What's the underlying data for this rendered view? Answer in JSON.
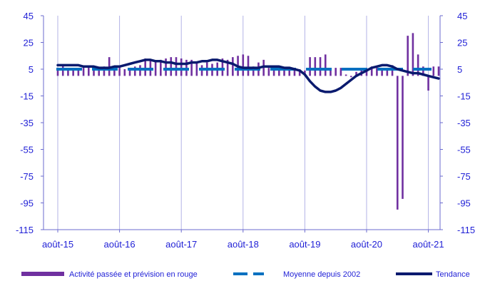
{
  "colors": {
    "bars": "#7030a0",
    "average": "#0070c0",
    "trend": "#0a1a6e",
    "axis": "#6b6bcf",
    "grid": "#b3b3e6",
    "tick_text": "#1f1fd6"
  },
  "chart_data": {
    "type": "bar",
    "title": "",
    "xlabel": "",
    "ylabel": "",
    "ylim": [
      -115,
      45
    ],
    "yticks": [
      45,
      25,
      5,
      -15,
      -35,
      -55,
      -75,
      -95,
      -115
    ],
    "yticks_right": [
      45,
      25,
      5,
      -15,
      -35,
      -55,
      -75,
      -95,
      -115
    ],
    "x_tick_labels": [
      "août-15",
      "août-16",
      "août-17",
      "août-18",
      "août-19",
      "août-20",
      "août-21"
    ],
    "x_tick_index": [
      0,
      12,
      24,
      36,
      48,
      60,
      72
    ],
    "n_months": 75,
    "grid": "vertical",
    "legend_position": "bottom",
    "series": [
      {
        "name": "Activité passée et prévision en rouge",
        "kind": "bar",
        "values": [
          6,
          8,
          5,
          4,
          6,
          7,
          7,
          6,
          6,
          7,
          14,
          6,
          7,
          5,
          6,
          7,
          8,
          13,
          12,
          11,
          12,
          13,
          14,
          14,
          13,
          12,
          12,
          10,
          8,
          10,
          9,
          10,
          13,
          12,
          14,
          15,
          16,
          15,
          7,
          10,
          12,
          6,
          5,
          6,
          6,
          5,
          6,
          5,
          4,
          14,
          14,
          14,
          16,
          6,
          6,
          6,
          1,
          -1,
          3,
          4,
          5,
          7,
          6,
          6,
          5,
          8,
          -100,
          -92,
          30,
          32,
          16,
          7,
          -11,
          7,
          7
        ]
      },
      {
        "name": "Moyenne depuis 2002",
        "kind": "dashed-line",
        "value": 5
      },
      {
        "name": "Tendance",
        "kind": "line",
        "values": [
          8,
          8,
          8,
          8,
          8,
          7,
          7,
          7,
          6,
          6,
          6,
          7,
          7,
          8,
          9,
          10,
          11,
          12,
          12,
          11,
          11,
          10,
          10,
          9,
          9,
          9,
          10,
          10,
          11,
          11,
          12,
          12,
          11,
          10,
          9,
          7,
          6,
          6,
          6,
          6,
          7,
          7,
          7,
          7,
          6,
          6,
          5,
          4,
          1,
          -4,
          -8,
          -11,
          -12,
          -12,
          -11,
          -9,
          -6,
          -3,
          0,
          2,
          4,
          6,
          7,
          8,
          8,
          7,
          5,
          4,
          3,
          2,
          2,
          1,
          0,
          -1,
          -2
        ]
      }
    ]
  },
  "legend": [
    {
      "label": "Activité passée et prévision en rouge",
      "swatch": "bar"
    },
    {
      "label": "Moyenne depuis 2002",
      "swatch": "dashed"
    },
    {
      "label": "Tendance",
      "swatch": "line"
    }
  ]
}
